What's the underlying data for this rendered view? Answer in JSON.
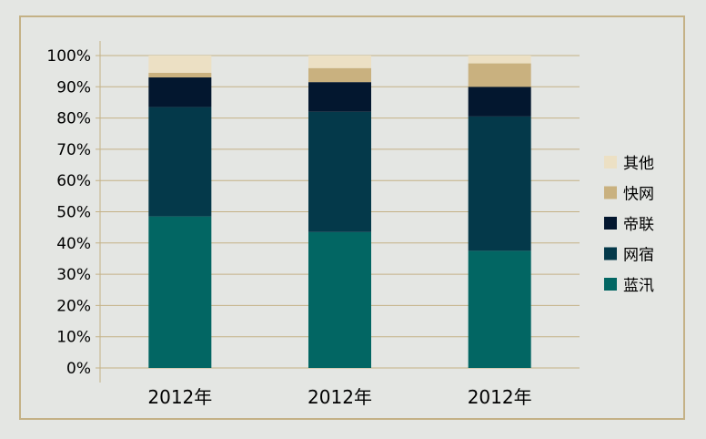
{
  "chart_data": {
    "type": "bar",
    "stacked": true,
    "percent": true,
    "title": "",
    "xlabel": "",
    "ylabel": "",
    "ylim": [
      0,
      100
    ],
    "yticks": [
      "0%",
      "10%",
      "20%",
      "30%",
      "40%",
      "50%",
      "60%",
      "70%",
      "80%",
      "90%",
      "100%"
    ],
    "categories": [
      "2012年",
      "2012年",
      "2012年"
    ],
    "grid": true,
    "legend_position": "right",
    "series": [
      {
        "name": "蓝汛",
        "color": "#026663",
        "values": [
          48.5,
          43.5,
          37.5
        ]
      },
      {
        "name": "网宿",
        "color": "#04394a",
        "values": [
          35,
          38.5,
          43
        ]
      },
      {
        "name": "帝联",
        "color": "#03172f",
        "values": [
          9.5,
          9.5,
          9.5
        ]
      },
      {
        "name": "快网",
        "color": "#c9b17f",
        "values": [
          1.5,
          4.5,
          7.5
        ]
      },
      {
        "name": "其他",
        "color": "#ece0c4",
        "values": [
          5.5,
          4,
          2.5
        ]
      }
    ]
  }
}
